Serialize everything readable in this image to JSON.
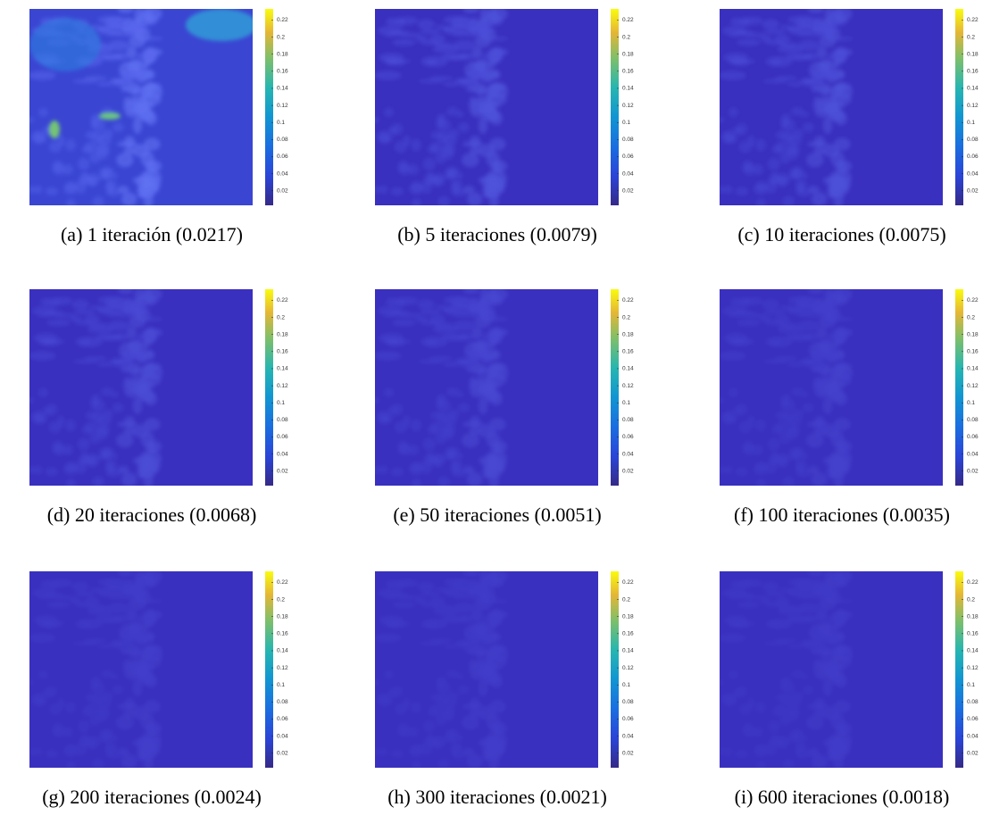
{
  "colorbar": {
    "lim": [
      0.003,
      0.233
    ],
    "ticks": [
      0.02,
      0.04,
      0.06,
      0.08,
      0.1,
      0.12,
      0.14,
      0.16,
      0.18,
      0.2,
      0.22
    ]
  },
  "panels": [
    {
      "caption": "(a) 1 iteración (0.0217)"
    },
    {
      "caption": "(b) 5 iteraciones (0.0079)"
    },
    {
      "caption": "(c) 10 iteraciones (0.0075)"
    },
    {
      "caption": "(d) 20 iteraciones (0.0068)"
    },
    {
      "caption": "(e) 50 iteraciones (0.0051)"
    },
    {
      "caption": "(f) 100 iteraciones (0.0035)"
    },
    {
      "caption": "(g) 200 iteraciones (0.0024)"
    },
    {
      "caption": "(h) 300 iteraciones (0.0021)"
    },
    {
      "caption": "(i) 600 iteraciones (0.0018)"
    }
  ]
}
